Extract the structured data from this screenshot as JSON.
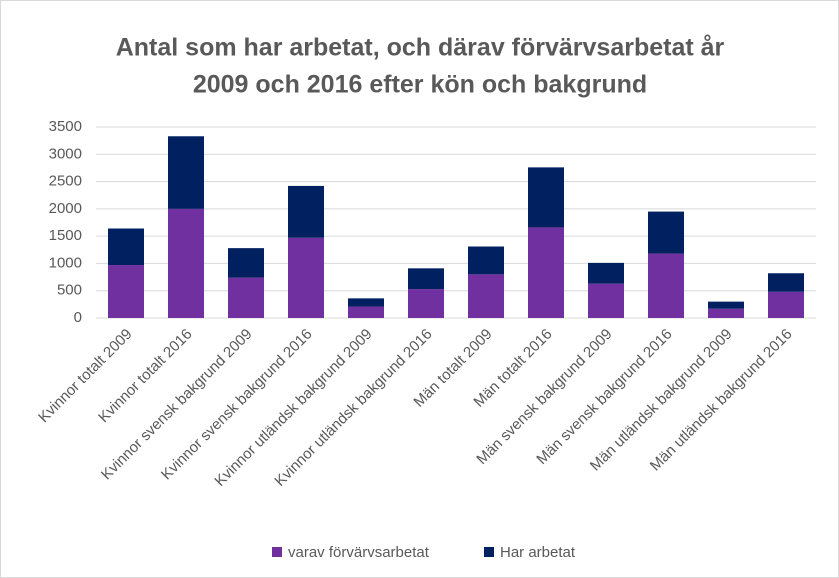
{
  "chart_data": {
    "type": "stacked_bar",
    "title": [
      "Antal som har arbetat, och därav förvärvsarbetat år",
      "2009 och 2016 efter kön och bakgrund"
    ],
    "categories": [
      "Kvinnor totalt 2009",
      "Kvinnor totalt 2016",
      "Kvinnor svensk bakgrund 2009",
      "Kvinnor svensk bakgrund 2016",
      "Kvinnor utländsk bakgrund 2009",
      "Kvinnor utländsk bakgrund 2016",
      "Män totalt 2009",
      "Män totalt 2016",
      "Män svensk bakgrund 2009",
      "Män svensk bakgrund 2016",
      "Män utländsk bakgrund 2009",
      "Män utländsk bakgrund 2016"
    ],
    "series": [
      {
        "name": "varav förvärvsarbetat",
        "color": "#7030a0",
        "values": [
          970,
          2000,
          740,
          1470,
          210,
          530,
          800,
          1660,
          630,
          1180,
          170,
          480
        ]
      },
      {
        "name": "Har arbetat",
        "color": "#002060",
        "values": [
          670,
          1330,
          540,
          950,
          150,
          380,
          510,
          1100,
          380,
          770,
          130,
          340
        ]
      }
    ],
    "ylim": [
      0,
      3500
    ],
    "yticks": [
      0,
      500,
      1000,
      1500,
      2000,
      2500,
      3000,
      3500
    ],
    "grid": true,
    "legend": "bottom"
  }
}
